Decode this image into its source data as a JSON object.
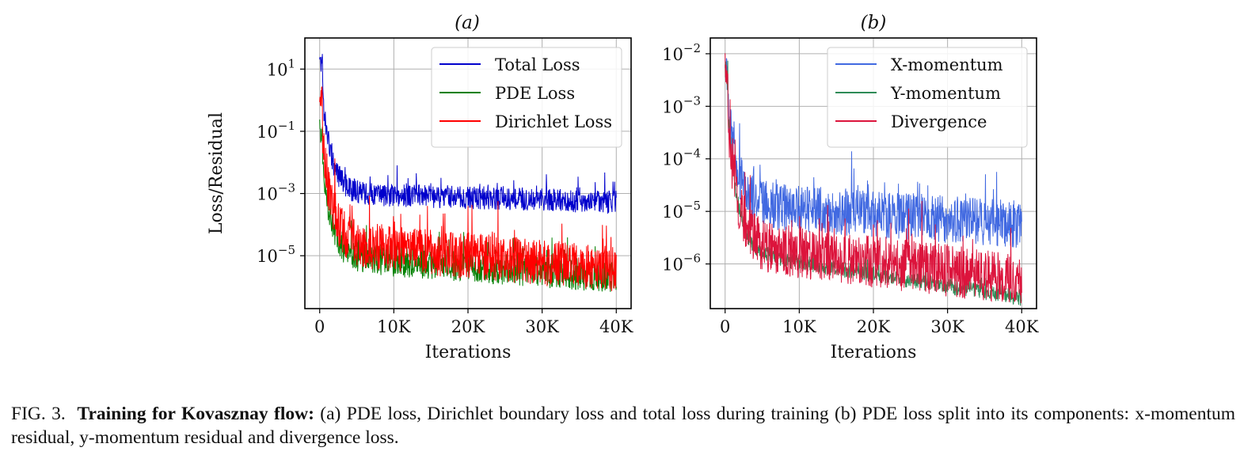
{
  "chart_data": [
    {
      "type": "line",
      "panel_label": "(a)",
      "title": "(a)",
      "xlabel": "Iterations",
      "ylabel": "Loss/Residual",
      "yscale": "log",
      "xlim": [
        -2000,
        42000
      ],
      "ylim_log10": [
        -6.7,
        2.0
      ],
      "x_ticks": [
        0,
        10000,
        20000,
        30000,
        40000
      ],
      "x_tick_labels": [
        "0",
        "10K",
        "20K",
        "30K",
        "40K"
      ],
      "y_ticks_log10": [
        1,
        -1,
        -3,
        -5
      ],
      "y_tick_labels": [
        {
          "base": "10",
          "exp": "1"
        },
        {
          "base": "10",
          "exp": "−1"
        },
        {
          "base": "10",
          "exp": "−3"
        },
        {
          "base": "10",
          "exp": "−5"
        }
      ],
      "grid": true,
      "legend_position": "top-right",
      "series": [
        {
          "name": "Total Loss",
          "color": "#0000cc",
          "start_log10": 1.5,
          "floor_log10": -2.6,
          "floor_end_log10": -2.9,
          "band_log10": 0.75
        },
        {
          "name": "PDE Loss",
          "color": "#008000",
          "start_log10": -0.6,
          "floor_log10": -4.5,
          "floor_end_log10": -5.2,
          "band_log10": 1.0
        },
        {
          "name": "Dirichlet Loss",
          "color": "#ff0000",
          "start_log10": 0.6,
          "floor_log10": -3.8,
          "floor_end_log10": -4.7,
          "band_log10": 1.5
        }
      ]
    },
    {
      "type": "line",
      "panel_label": "(b)",
      "title": "(b)",
      "xlabel": "Iterations",
      "ylabel": "",
      "yscale": "log",
      "xlim": [
        -2000,
        42000
      ],
      "ylim_log10": [
        -6.85,
        -1.7
      ],
      "x_ticks": [
        0,
        10000,
        20000,
        30000,
        40000
      ],
      "x_tick_labels": [
        "0",
        "10K",
        "20K",
        "30K",
        "40K"
      ],
      "y_ticks_log10": [
        -2,
        -3,
        -4,
        -5,
        -6
      ],
      "y_tick_labels": [
        {
          "base": "10",
          "exp": "−2"
        },
        {
          "base": "10",
          "exp": "−3"
        },
        {
          "base": "10",
          "exp": "−4"
        },
        {
          "base": "10",
          "exp": "−5"
        },
        {
          "base": "10",
          "exp": "−6"
        }
      ],
      "grid": true,
      "legend_position": "top-right",
      "series": [
        {
          "name": "X-momentum",
          "color": "#4169e1",
          "start_log10": -1.9,
          "floor_log10": -4.4,
          "floor_end_log10": -4.8,
          "band_log10": 0.9
        },
        {
          "name": "Y-momentum",
          "color": "#2e8b57",
          "start_log10": -2.0,
          "floor_log10": -5.6,
          "floor_end_log10": -6.5,
          "band_log10": 0.3
        },
        {
          "name": "Divergence",
          "color": "#dc143c",
          "start_log10": -1.95,
          "floor_log10": -5.1,
          "floor_end_log10": -5.8,
          "band_log10": 1.0
        }
      ]
    }
  ],
  "caption": {
    "prefix": "FIG. 3.",
    "bold": "Training for Kovasznay flow:",
    "text": "(a) PDE loss, Dirichlet boundary loss and total loss during training (b) PDE loss split into its components: x-momentum residual, y-momentum residual and divergence loss."
  }
}
